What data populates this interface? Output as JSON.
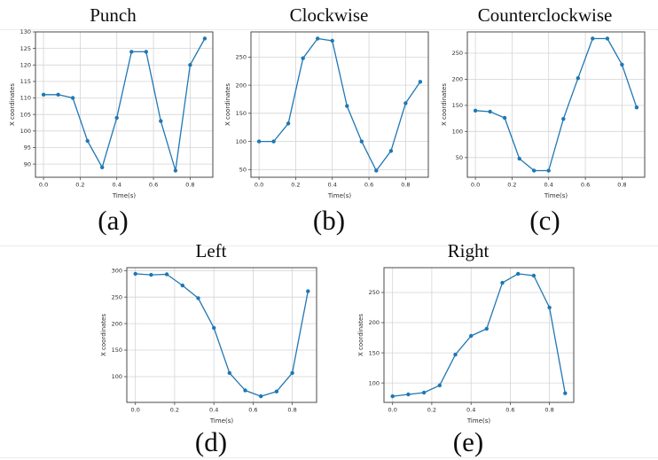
{
  "figure": {
    "captions": [
      "(a)",
      "(b)",
      "(c)",
      "(d)",
      "(e)"
    ],
    "style": {
      "line_color": "#1f77b4",
      "grid_color": "#d4d4d4",
      "spine_color": "#4a4a4a",
      "text_color": "#2b2b2b"
    }
  },
  "chart_data": [
    {
      "type": "line",
      "title": "Punch",
      "xlabel": "Time(s)",
      "ylabel": "X coordinates",
      "x": [
        0.0,
        0.08,
        0.16,
        0.24,
        0.32,
        0.4,
        0.48,
        0.56,
        0.64,
        0.72,
        0.8,
        0.88
      ],
      "values": [
        111,
        111,
        110,
        97,
        89,
        104,
        124,
        124,
        103,
        88,
        120,
        128
      ],
      "xticks": [
        0.0,
        0.2,
        0.4,
        0.6,
        0.8
      ],
      "xtick_labels": [
        "0.0",
        "0.2",
        "0.4",
        "0.6",
        "0.8"
      ],
      "yticks": [
        90,
        95,
        100,
        105,
        110,
        115,
        120,
        125,
        130
      ],
      "line_color": "#1f77b4",
      "grid": true,
      "legend": "none"
    },
    {
      "type": "line",
      "title": "Clockwise",
      "xlabel": "Time(s)",
      "ylabel": "X coordinates",
      "x": [
        0.0,
        0.08,
        0.16,
        0.24,
        0.32,
        0.4,
        0.48,
        0.56,
        0.64,
        0.72,
        0.8,
        0.88
      ],
      "values": [
        100,
        100,
        132,
        248,
        283,
        279,
        163,
        100,
        48,
        83,
        168,
        206
      ],
      "xticks": [
        0.0,
        0.2,
        0.4,
        0.6,
        0.8
      ],
      "xtick_labels": [
        "0.0",
        "0.2",
        "0.4",
        "0.6",
        "0.8"
      ],
      "yticks": [
        50,
        100,
        150,
        200,
        250
      ],
      "line_color": "#1f77b4",
      "grid": true,
      "legend": "none"
    },
    {
      "type": "line",
      "title": "Counterclockwise",
      "xlabel": "Time(s)",
      "ylabel": "X coordinates",
      "x": [
        0.0,
        0.08,
        0.16,
        0.24,
        0.32,
        0.4,
        0.48,
        0.56,
        0.64,
        0.72,
        0.8,
        0.88
      ],
      "values": [
        140,
        138,
        126,
        48,
        25,
        25,
        124,
        202,
        278,
        278,
        228,
        146
      ],
      "xticks": [
        0.0,
        0.2,
        0.4,
        0.6,
        0.8
      ],
      "xtick_labels": [
        "0.0",
        "0.2",
        "0.4",
        "0.6",
        "0.8"
      ],
      "yticks": [
        50,
        100,
        150,
        200,
        250
      ],
      "line_color": "#1f77b4",
      "grid": true,
      "legend": "none"
    },
    {
      "type": "line",
      "title": "Left",
      "xlabel": "Time(s)",
      "ylabel": "X coordinates",
      "x": [
        0.0,
        0.08,
        0.16,
        0.24,
        0.32,
        0.4,
        0.48,
        0.56,
        0.64,
        0.72,
        0.8,
        0.88
      ],
      "values": [
        294,
        292,
        293,
        272,
        248,
        192,
        107,
        74,
        63,
        72,
        107,
        261
      ],
      "xticks": [
        0.0,
        0.2,
        0.4,
        0.6,
        0.8
      ],
      "xtick_labels": [
        "0.0",
        "0.2",
        "0.4",
        "0.6",
        "0.8"
      ],
      "yticks": [
        100,
        150,
        200,
        250,
        300
      ],
      "line_color": "#1f77b4",
      "grid": true,
      "legend": "none"
    },
    {
      "type": "line",
      "title": "Right",
      "xlabel": "Time(s)",
      "ylabel": "X coordinates",
      "x": [
        0.0,
        0.08,
        0.16,
        0.24,
        0.32,
        0.4,
        0.48,
        0.56,
        0.64,
        0.72,
        0.8,
        0.88
      ],
      "values": [
        78,
        81,
        84,
        96,
        147,
        178,
        190,
        266,
        281,
        278,
        225,
        83
      ],
      "xticks": [
        0.0,
        0.2,
        0.4,
        0.6,
        0.8
      ],
      "xtick_labels": [
        "0.0",
        "0.2",
        "0.4",
        "0.6",
        "0.8"
      ],
      "yticks": [
        100,
        150,
        200,
        250
      ],
      "line_color": "#1f77b4",
      "grid": true,
      "legend": "none"
    }
  ]
}
